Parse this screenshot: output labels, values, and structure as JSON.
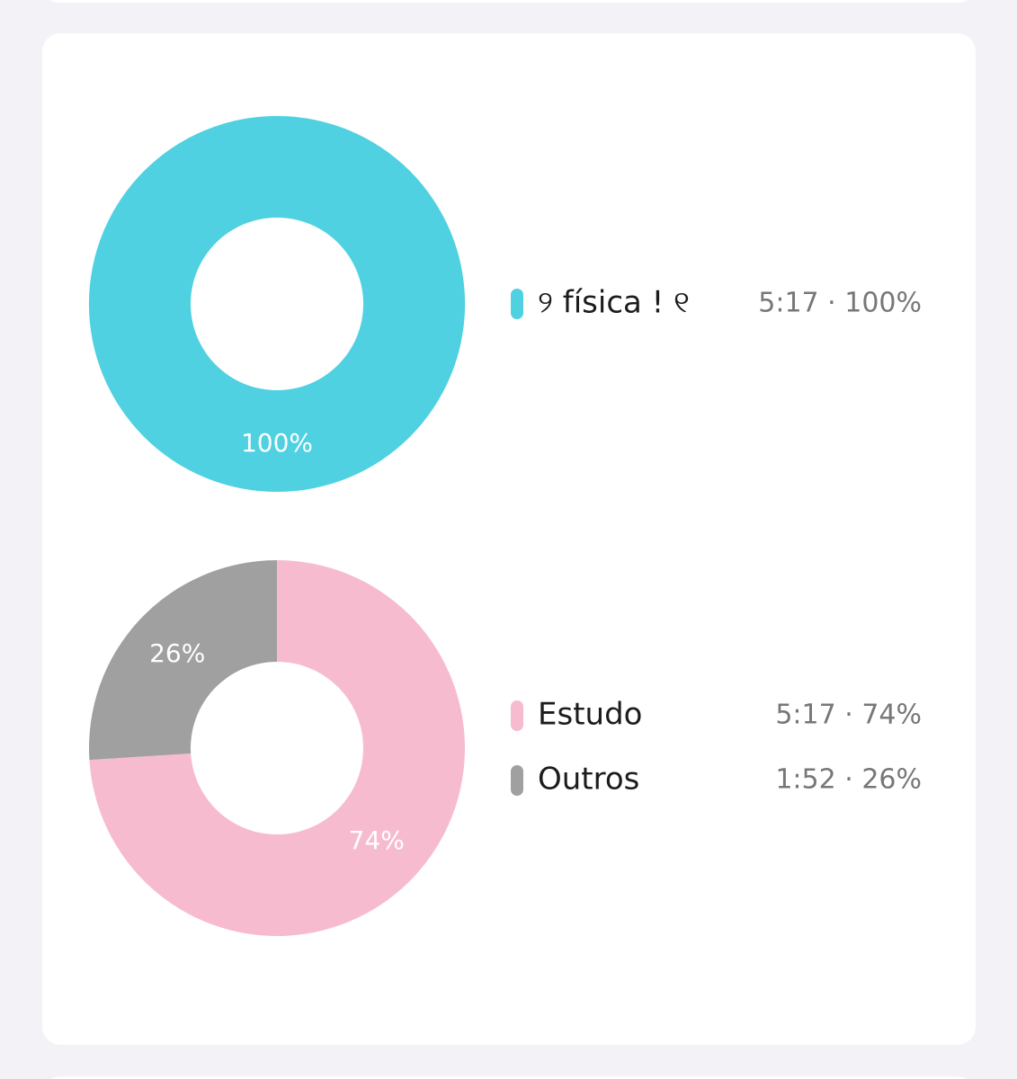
{
  "chart_data": [
    {
      "type": "pie",
      "categories": [
        "୨ física ! ୧"
      ],
      "values": [
        100
      ],
      "value_labels": [
        "100%"
      ],
      "colors": [
        "#4fd1e1"
      ],
      "details": [
        "5:17 · 100%"
      ]
    },
    {
      "type": "pie",
      "categories": [
        "Estudo",
        "Outros"
      ],
      "values": [
        74,
        26
      ],
      "value_labels": [
        "74%",
        "26%"
      ],
      "colors": [
        "#f7bbd0",
        "#a0a0a0"
      ],
      "details": [
        "5:17 · 74%",
        "1:52 · 26%"
      ]
    }
  ]
}
